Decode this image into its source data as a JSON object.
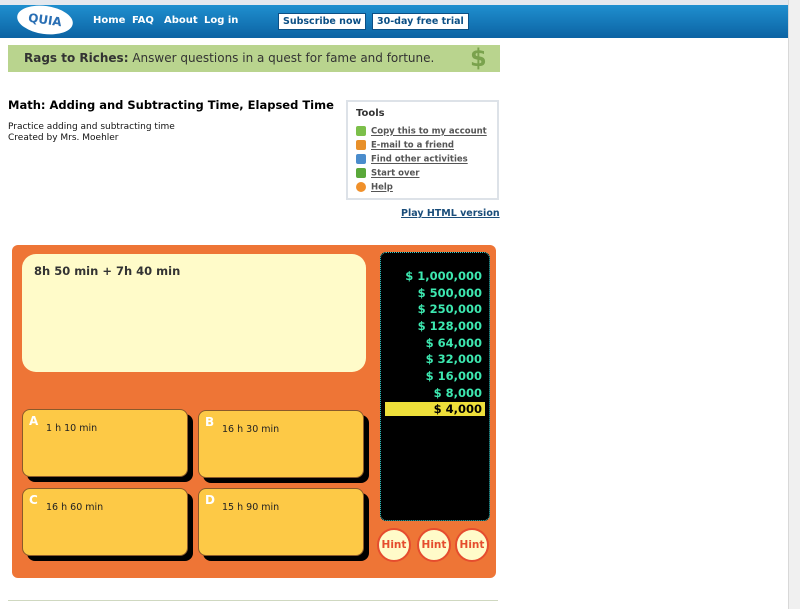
{
  "header": {
    "logo": "QUIA",
    "nav": [
      "Home",
      "FAQ",
      "About",
      "Log in"
    ],
    "subscribe": "Subscribe now",
    "trial": "30-day free trial"
  },
  "banner": {
    "title": "Rags to Riches:",
    "text": " Answer questions in a quest for fame and fortune.",
    "icon": "money-tree-icon"
  },
  "activity": {
    "title": "Math: Adding and Subtracting Time, Elapsed Time",
    "description": "Practice adding and subtracting time",
    "author": "Created by Mrs. Moehler"
  },
  "tools": {
    "heading": "Tools",
    "items": [
      {
        "label": "Copy this to my account",
        "icon": "copy-icon",
        "color": "#7cbf4a"
      },
      {
        "label": "E-mail to a friend",
        "icon": "email-friend-icon",
        "color": "#e8902a"
      },
      {
        "label": "Find other activities",
        "icon": "search-icon",
        "color": "#4a8ccc"
      },
      {
        "label": "Start over",
        "icon": "rewind-icon",
        "color": "#5aa83a"
      },
      {
        "label": "Help",
        "icon": "help-icon",
        "color": "#f0902a"
      }
    ]
  },
  "play_html": "Play HTML version",
  "game": {
    "question": "8h 50 min + 7h 40 min",
    "answers": [
      {
        "letter": "A",
        "text": "1 h 10 min"
      },
      {
        "letter": "B",
        "text": "16 h 30 min"
      },
      {
        "letter": "C",
        "text": "16 h 60 min"
      },
      {
        "letter": "D",
        "text": "15 h 90 min"
      }
    ],
    "ladder": [
      "$ 1,000,000",
      "$ 500,000",
      "$ 250,000",
      "$ 128,000",
      "$ 64,000",
      "$ 32,000",
      "$ 16,000",
      "$ 8,000",
      "$ 4,000"
    ],
    "current_level": "$ 4,000",
    "hints": [
      "Hint",
      "Hint",
      "Hint"
    ]
  }
}
